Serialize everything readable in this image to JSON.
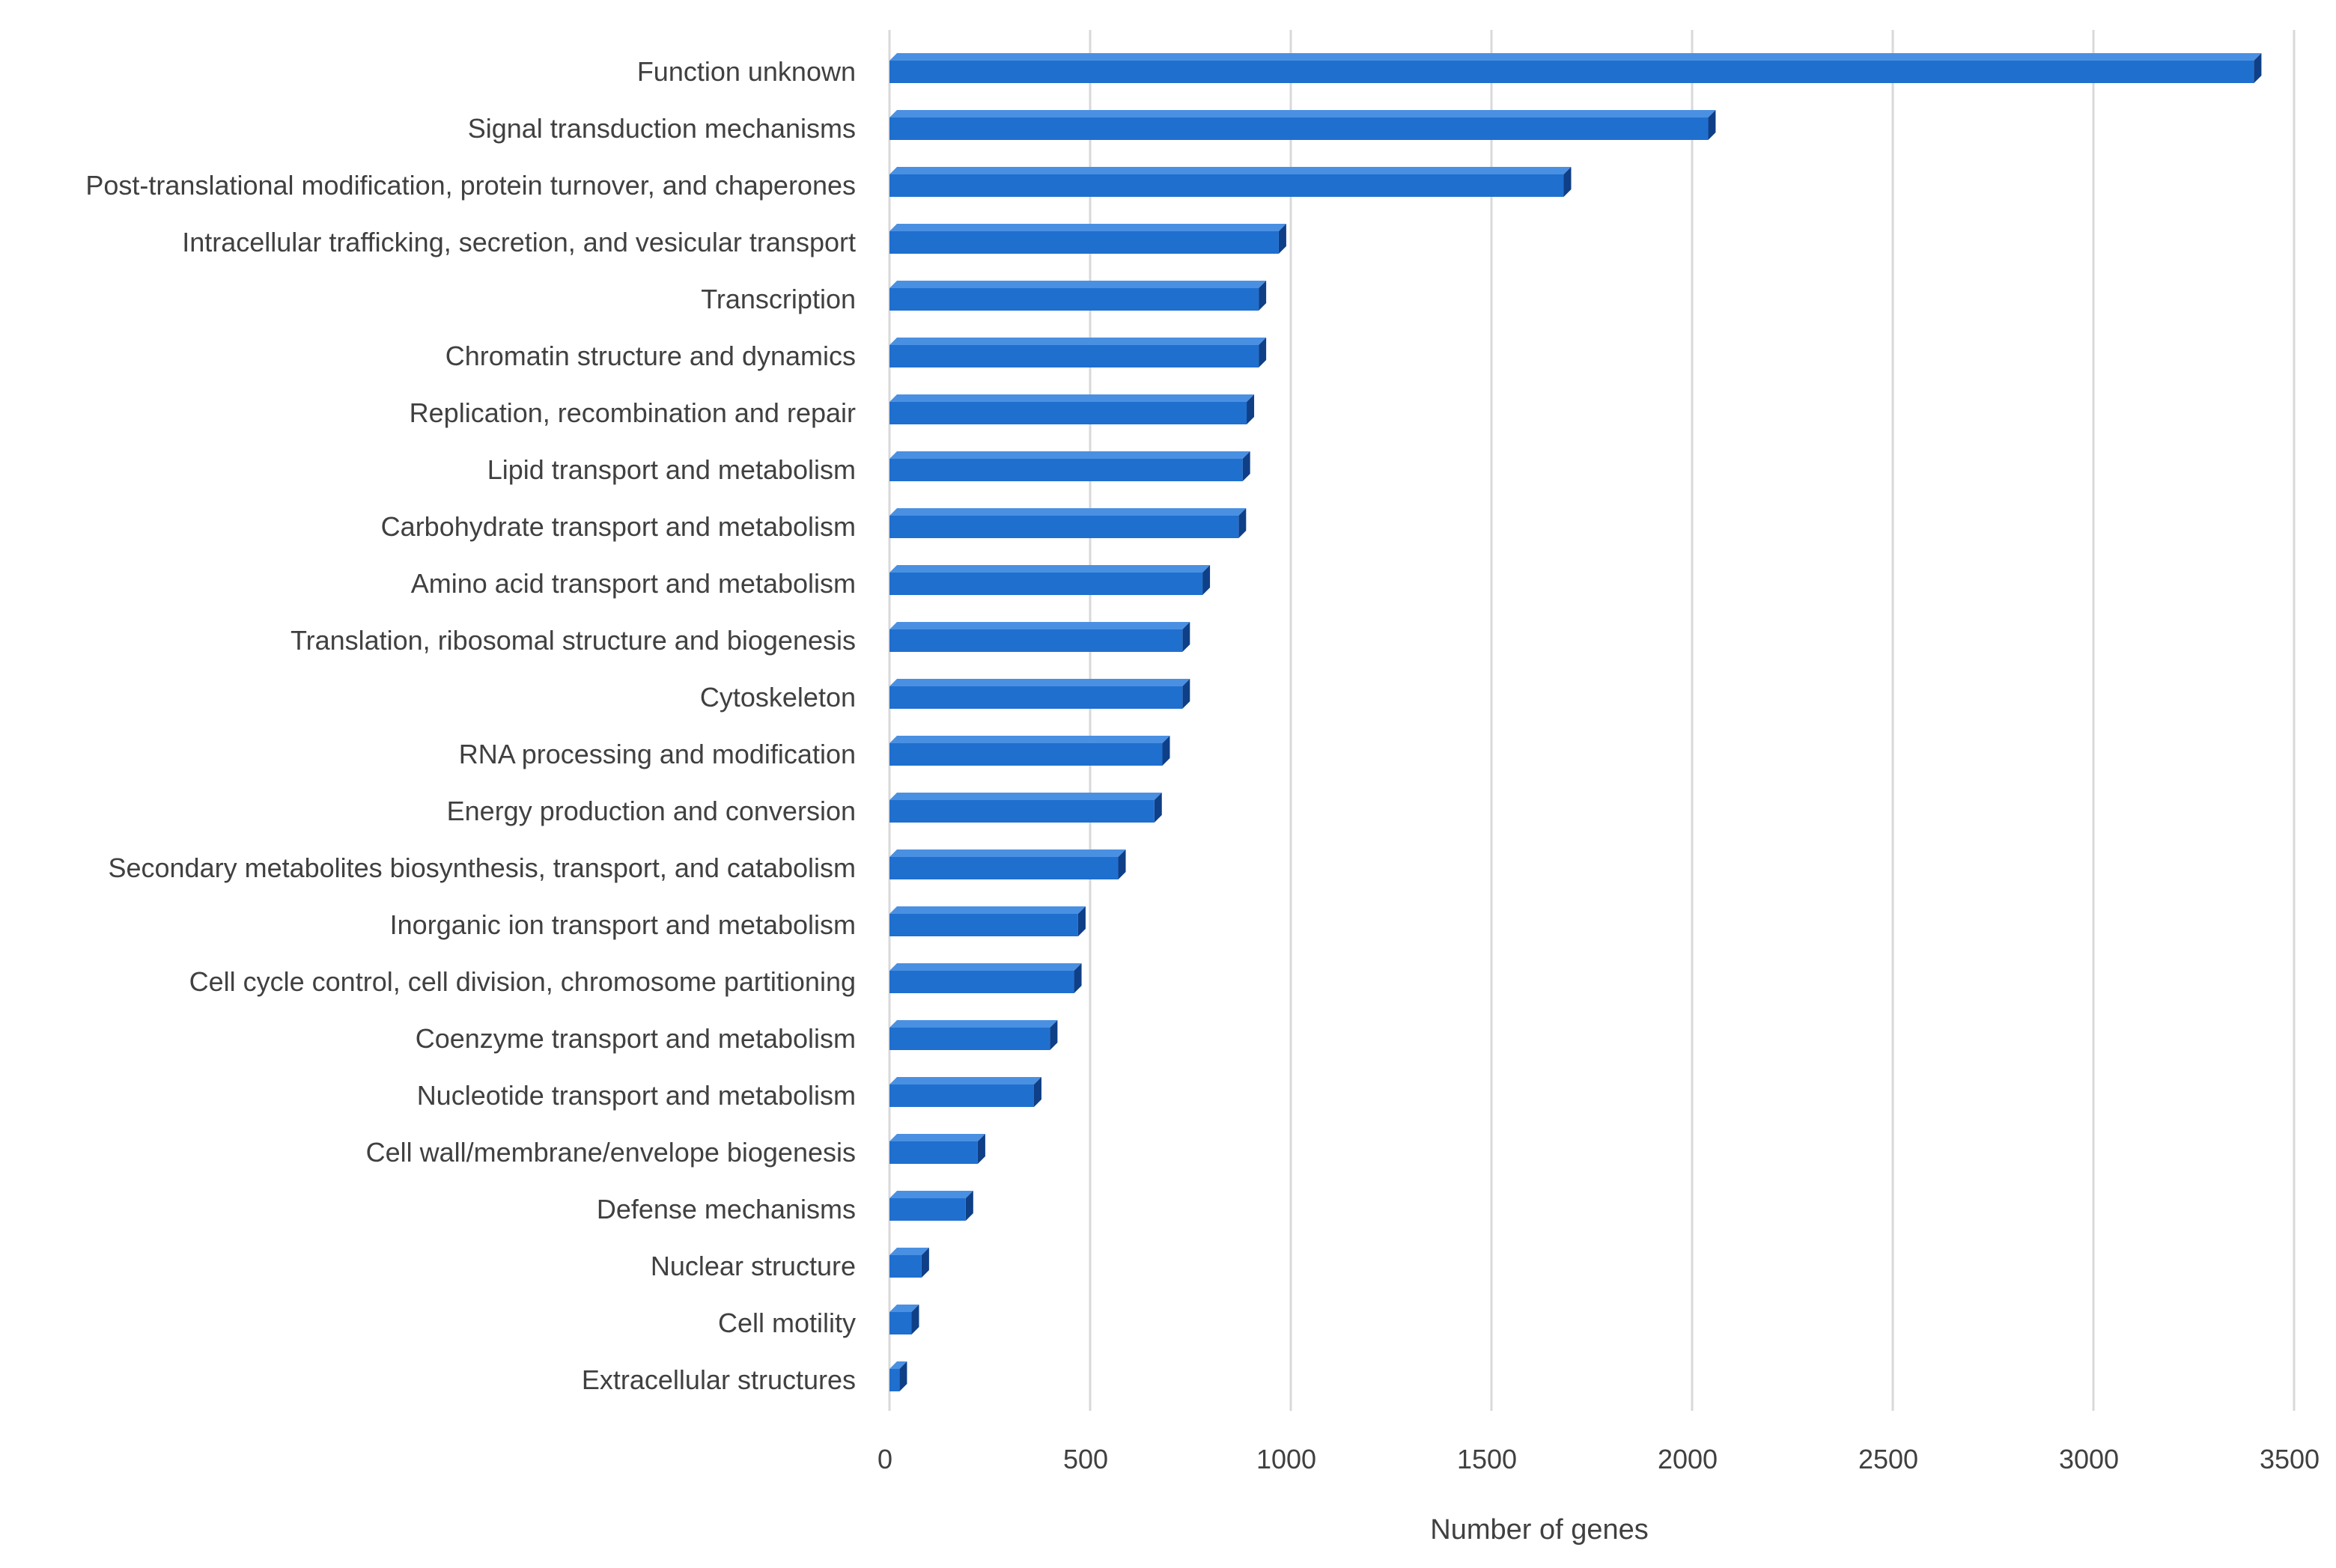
{
  "chart_data": {
    "type": "bar",
    "orientation": "horizontal",
    "title": "",
    "xlabel": "Number of genes",
    "ylabel": "",
    "xlim": [
      0,
      3500
    ],
    "xticks": [
      0,
      500,
      1000,
      1500,
      2000,
      2500,
      3000,
      3500
    ],
    "grid": "vertical",
    "bar_color": "#1f6fcf",
    "bar_top_color": "#4a90e2",
    "bar_side_color": "#0f3f86",
    "categories": [
      "Function unknown",
      "Signal transduction mechanisms",
      "Post-translational modification, protein turnover, and chaperones",
      "Intracellular trafficking, secretion, and vesicular transport",
      "Transcription",
      "Chromatin structure and dynamics",
      "Replication, recombination and repair",
      "Lipid transport and metabolism",
      "Carbohydrate transport and metabolism",
      "Amino acid transport and metabolism",
      "Translation, ribosomal structure and biogenesis",
      "Cytoskeleton",
      "RNA processing and modification",
      "Energy production and conversion",
      "Secondary metabolites biosynthesis, transport, and catabolism",
      "Inorganic ion transport and metabolism",
      "Cell cycle control, cell division, chromosome partitioning",
      "Coenzyme transport and metabolism",
      "Nucleotide transport and metabolism",
      "Cell wall/membrane/envelope biogenesis",
      "Defense mechanisms",
      "Nuclear structure",
      "Cell motility",
      "Extracellular structures"
    ],
    "values": [
      3400,
      2040,
      1680,
      970,
      920,
      920,
      890,
      880,
      870,
      780,
      730,
      730,
      680,
      660,
      570,
      470,
      460,
      400,
      360,
      220,
      190,
      80,
      55,
      25
    ]
  }
}
